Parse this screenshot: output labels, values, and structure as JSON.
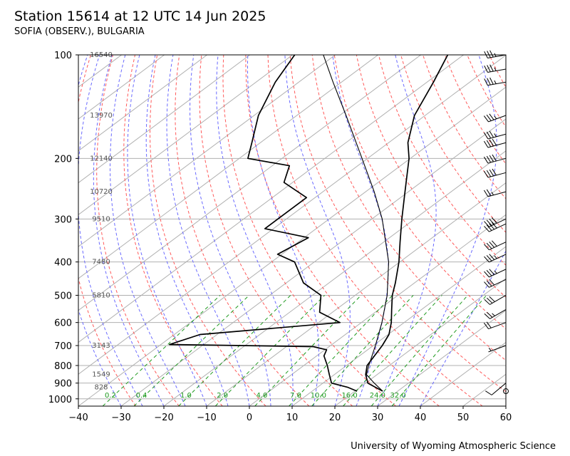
{
  "header": {
    "title": "Station 15614 at 12 UTC 14 Jun 2025",
    "subtitle": "SOFIA (OBSERV.), BULGARIA"
  },
  "credit": "University of Wyoming Atmospheric Science",
  "chart_data": {
    "type": "line",
    "chart_kind": "skew-T log-P diagram",
    "xlim": [
      -40,
      60
    ],
    "ylim_hpa": [
      1050,
      100
    ],
    "x_scale": "skewed temperature (°C)",
    "y_scale": "log",
    "grid": true,
    "x_ticks": [
      "−40",
      "−30",
      "−20",
      "−10",
      "0",
      "10",
      "20",
      "30",
      "40",
      "50",
      "60"
    ],
    "y_ticks": [
      100,
      200,
      300,
      400,
      500,
      600,
      700,
      800,
      900,
      1000
    ],
    "height_labels": [
      {
        "p": 100,
        "text": "16540"
      },
      {
        "p": 150,
        "text": "13970"
      },
      {
        "p": 200,
        "text": "12140"
      },
      {
        "p": 250,
        "text": "10720"
      },
      {
        "p": 300,
        "text": "9510"
      },
      {
        "p": 400,
        "text": "7480"
      },
      {
        "p": 500,
        "text": "5810"
      },
      {
        "p": 700,
        "text": "3143"
      },
      {
        "p": 850,
        "text": "1549"
      },
      {
        "p": 925,
        "text": "828"
      }
    ],
    "mixing_ratio_labels": [
      "0.2",
      "0.4",
      "1.0",
      "2.0",
      "4.0",
      "7.0",
      "10.0",
      "16.0",
      "24.0",
      "32.0"
    ],
    "temperature_profile": [
      {
        "p": 950,
        "t": 26.5
      },
      {
        "p": 925,
        "t": 23.5
      },
      {
        "p": 900,
        "t": 20.5
      },
      {
        "p": 850,
        "t": 17.3
      },
      {
        "p": 800,
        "t": 14.8
      },
      {
        "p": 750,
        "t": 13.5
      },
      {
        "p": 700,
        "t": 12.1
      },
      {
        "p": 650,
        "t": 10.2
      },
      {
        "p": 600,
        "t": 7.0
      },
      {
        "p": 550,
        "t": 3.0
      },
      {
        "p": 500,
        "t": -1.3
      },
      {
        "p": 460,
        "t": -4.5
      },
      {
        "p": 400,
        "t": -10.2
      },
      {
        "p": 350,
        "t": -16.2
      },
      {
        "p": 300,
        "t": -23.0
      },
      {
        "p": 250,
        "t": -30.8
      },
      {
        "p": 200,
        "t": -40.3
      },
      {
        "p": 180,
        "t": -45.5
      },
      {
        "p": 150,
        "t": -52.5
      },
      {
        "p": 120,
        "t": -58.5
      },
      {
        "p": 100,
        "t": -63.7
      }
    ],
    "dewpoint_profile": [
      {
        "p": 950,
        "t": 20.5
      },
      {
        "p": 925,
        "t": 17.0
      },
      {
        "p": 900,
        "t": 12.0
      },
      {
        "p": 850,
        "t": 8.8
      },
      {
        "p": 800,
        "t": 5.5
      },
      {
        "p": 750,
        "t": 1.7
      },
      {
        "p": 720,
        "t": 0.4
      },
      {
        "p": 705,
        "t": -3.7
      },
      {
        "p": 695,
        "t": -38.0
      },
      {
        "p": 650,
        "t": -34.0
      },
      {
        "p": 600,
        "t": -5.0
      },
      {
        "p": 560,
        "t": -13.0
      },
      {
        "p": 500,
        "t": -18.0
      },
      {
        "p": 460,
        "t": -26.0
      },
      {
        "p": 400,
        "t": -34.6
      },
      {
        "p": 380,
        "t": -41.0
      },
      {
        "p": 340,
        "t": -39.0
      },
      {
        "p": 320,
        "t": -52.0
      },
      {
        "p": 300,
        "t": -52.0
      },
      {
        "p": 260,
        "t": -52.0
      },
      {
        "p": 235,
        "t": -62.0
      },
      {
        "p": 210,
        "t": -66.0
      },
      {
        "p": 200,
        "t": -78.0
      },
      {
        "p": 180,
        "t": -82.0
      },
      {
        "p": 150,
        "t": -89.0
      },
      {
        "p": 120,
        "t": -95.5
      },
      {
        "p": 100,
        "t": -99.5
      }
    ],
    "parcel_profile": [
      {
        "p": 950,
        "t": 26.5
      },
      {
        "p": 900,
        "t": 22.0
      },
      {
        "p": 850,
        "t": 17.5
      },
      {
        "p": 800,
        "t": 15.2
      },
      {
        "p": 700,
        "t": 10.5
      },
      {
        "p": 600,
        "t": 4.8
      },
      {
        "p": 500,
        "t": -2.5
      },
      {
        "p": 400,
        "t": -12.6
      },
      {
        "p": 300,
        "t": -27.6
      },
      {
        "p": 250,
        "t": -38.0
      },
      {
        "p": 200,
        "t": -51.3
      },
      {
        "p": 150,
        "t": -68.5
      },
      {
        "p": 120,
        "t": -82.0
      },
      {
        "p": 100,
        "t": -92.8
      }
    ],
    "wind_profile": [
      {
        "p": 950,
        "dir": 120,
        "kt": 0
      },
      {
        "p": 900,
        "dir": 230,
        "kt": 10
      },
      {
        "p": 700,
        "dir": 250,
        "kt": 5
      },
      {
        "p": 600,
        "dir": 250,
        "kt": 20
      },
      {
        "p": 550,
        "dir": 240,
        "kt": 25
      },
      {
        "p": 500,
        "dir": 240,
        "kt": 30
      },
      {
        "p": 450,
        "dir": 245,
        "kt": 30
      },
      {
        "p": 420,
        "dir": 245,
        "kt": 35
      },
      {
        "p": 380,
        "dir": 245,
        "kt": 35
      },
      {
        "p": 350,
        "dir": 245,
        "kt": 40
      },
      {
        "p": 310,
        "dir": 245,
        "kt": 40
      },
      {
        "p": 300,
        "dir": 245,
        "kt": 40
      },
      {
        "p": 250,
        "dir": 255,
        "kt": 25
      },
      {
        "p": 220,
        "dir": 255,
        "kt": 40
      },
      {
        "p": 200,
        "dir": 255,
        "kt": 40
      },
      {
        "p": 180,
        "dir": 255,
        "kt": 40
      },
      {
        "p": 170,
        "dir": 255,
        "kt": 35
      },
      {
        "p": 150,
        "dir": 250,
        "kt": 35
      },
      {
        "p": 120,
        "dir": 260,
        "kt": 35
      },
      {
        "p": 110,
        "dir": 260,
        "kt": 35
      },
      {
        "p": 100,
        "dir": 260,
        "kt": 35
      }
    ],
    "colors": {
      "temperature": "#000000",
      "dewpoint": "#000000",
      "parcel": "#000000",
      "isotherm": "#b0b0b0",
      "dry_adiabat": "#ff5a5a",
      "moist_adiabat": "#6a6aff",
      "mixing_ratio": "#1f9a1f",
      "isobar": "#b0b0b0",
      "label": "#555555",
      "mixing_label": "#1f9a1f"
    }
  }
}
